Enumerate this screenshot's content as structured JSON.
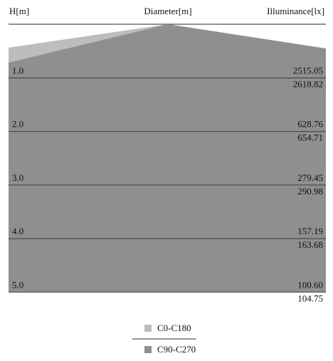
{
  "chart_data": {
    "type": "area",
    "headers": {
      "left": "H[m]",
      "center": "Diameter[m]",
      "right": "Illuminance[lx]"
    },
    "levels": [
      {
        "height_label": "1.0",
        "height": 1.0,
        "c0_c180": "2515.05",
        "c90_c270": "2618.82"
      },
      {
        "height_label": "2.0",
        "height": 2.0,
        "c0_c180": "628.76",
        "c90_c270": "654.71"
      },
      {
        "height_label": "3.0",
        "height": 3.0,
        "c0_c180": "279.45",
        "c90_c270": "290.98"
      },
      {
        "height_label": "4.0",
        "height": 4.0,
        "c0_c180": "157.19",
        "c90_c270": "163.68"
      },
      {
        "height_label": "5.0",
        "height": 5.0,
        "c0_c180": "100.60",
        "c90_c270": "104.75"
      }
    ],
    "series": [
      {
        "name": "C0-C180",
        "color": "#bdbdbd"
      },
      {
        "name": "C90-C270",
        "color": "#8f8f8f"
      }
    ]
  }
}
